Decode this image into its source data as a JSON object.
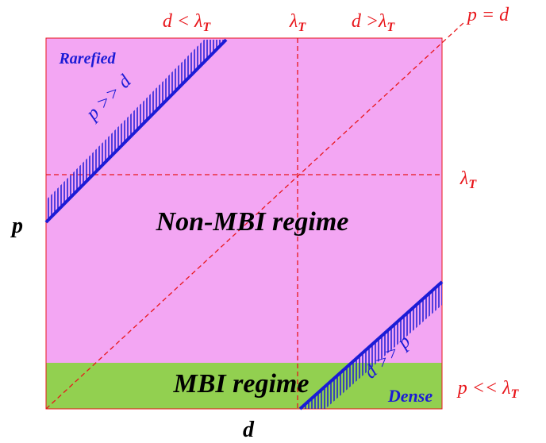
{
  "axis_labels": {
    "x": "d",
    "y": "p"
  },
  "top_labels": {
    "left": {
      "main": "d < λ",
      "sub": "T"
    },
    "center": {
      "main": "λ",
      "sub": "T"
    },
    "right": {
      "main": "d >λ",
      "sub": "T"
    },
    "diagonal": "p = d"
  },
  "right_labels": {
    "threshold": {
      "main": "λ",
      "sub": "T"
    },
    "bottom": {
      "main": "p << λ",
      "sub": "T"
    }
  },
  "regions": {
    "non_mbi": "Non-MBI regime",
    "mbi": "MBI regime"
  },
  "bands": {
    "rarefied": {
      "name": "Rarefied",
      "condition": "p >> d"
    },
    "dense": {
      "name": "Dense",
      "condition": "d >> p"
    }
  }
}
